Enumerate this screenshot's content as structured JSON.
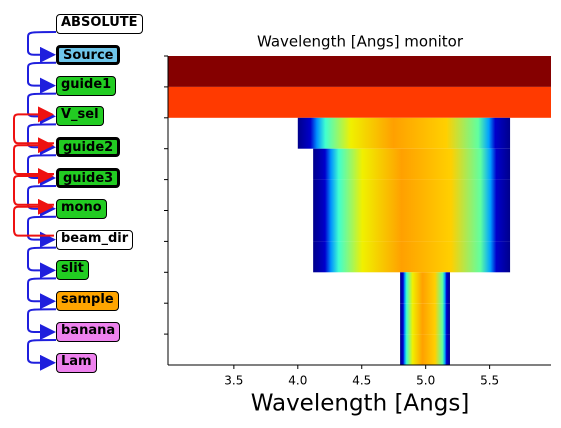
{
  "nodes": [
    {
      "label": "ABSOLUTE",
      "color": "#ffffff",
      "thick": false
    },
    {
      "label": "Source",
      "color": "#6ec6ea",
      "thick": true
    },
    {
      "label": "guide1",
      "color": "#22cc22",
      "thick": false
    },
    {
      "label": "V_sel",
      "color": "#22cc22",
      "thick": false
    },
    {
      "label": "guide2",
      "color": "#22cc22",
      "thick": true
    },
    {
      "label": "guide3",
      "color": "#22cc22",
      "thick": true
    },
    {
      "label": "mono",
      "color": "#22cc22",
      "thick": false
    },
    {
      "label": "beam_dir",
      "color": "#ffffff",
      "thick": false
    },
    {
      "label": "slit",
      "color": "#22cc22",
      "thick": false
    },
    {
      "label": "sample",
      "color": "#ffa500",
      "thick": false
    },
    {
      "label": "banana",
      "color": "#ee82ee",
      "thick": false
    },
    {
      "label": "Lam",
      "color": "#ee82ee",
      "thick": false
    }
  ],
  "chart_data": {
    "type": "heatmap",
    "title": "Wavelength [Angs] monitor",
    "x_label": "Wavelength [Angs]",
    "xlim": [
      2.985,
      5.98
    ],
    "xticks": [
      3.5,
      {
        "value": 4.0,
        "label": "4.0"
      },
      4.5,
      {
        "value": 5.0,
        "label": "5.0"
      },
      5.5
    ],
    "ylim": [
      0,
      10
    ],
    "yticks": [
      0,
      1,
      2,
      3,
      4,
      5,
      6,
      7,
      8,
      9
    ],
    "rows": [
      {
        "range": [
          2.985,
          5.98
        ],
        "fill": "#850000"
      },
      {
        "range": [
          2.985,
          5.98
        ],
        "fill": "#ff3a00"
      },
      {
        "range": [
          4.0,
          5.66
        ],
        "fill": "jet"
      },
      {
        "range": [
          4.12,
          5.66
        ],
        "fill": "jet"
      },
      {
        "range": [
          4.12,
          5.66
        ],
        "fill": "jet"
      },
      {
        "range": [
          4.12,
          5.66
        ],
        "fill": "jet"
      },
      {
        "range": [
          4.12,
          5.66
        ],
        "fill": "jet"
      },
      {
        "range": [
          4.8,
          5.19
        ],
        "fill": "jet"
      },
      {
        "range": [
          4.8,
          5.19
        ],
        "fill": "jet"
      },
      {
        "range": [
          4.8,
          5.19
        ],
        "fill": "jet"
      }
    ]
  }
}
